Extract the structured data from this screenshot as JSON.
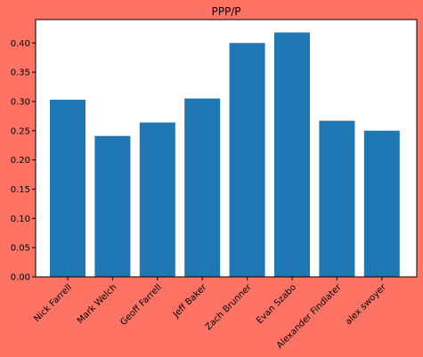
{
  "chart_data": {
    "type": "bar",
    "title": "PPP/P",
    "xlabel": "",
    "ylabel": "",
    "categories": [
      "Nick Farrell",
      "Mark Welch",
      "Geoff Farrell",
      "Jeff  Baker",
      "Zach Brunner",
      "Evan Szabo",
      "Alexander Findlater",
      "alex swoyer"
    ],
    "values": [
      0.303,
      0.241,
      0.264,
      0.305,
      0.4,
      0.418,
      0.267,
      0.25
    ],
    "ylim": [
      0,
      0.44
    ],
    "yticks": [
      "0.00",
      "0.05",
      "0.10",
      "0.15",
      "0.20",
      "0.25",
      "0.30",
      "0.35",
      "0.40"
    ],
    "grid": false,
    "legend": "none",
    "colors": {
      "background": "#ff7365",
      "plot_background": "#ffffff",
      "bar": "#1f77b4",
      "axis": "#000000"
    }
  }
}
